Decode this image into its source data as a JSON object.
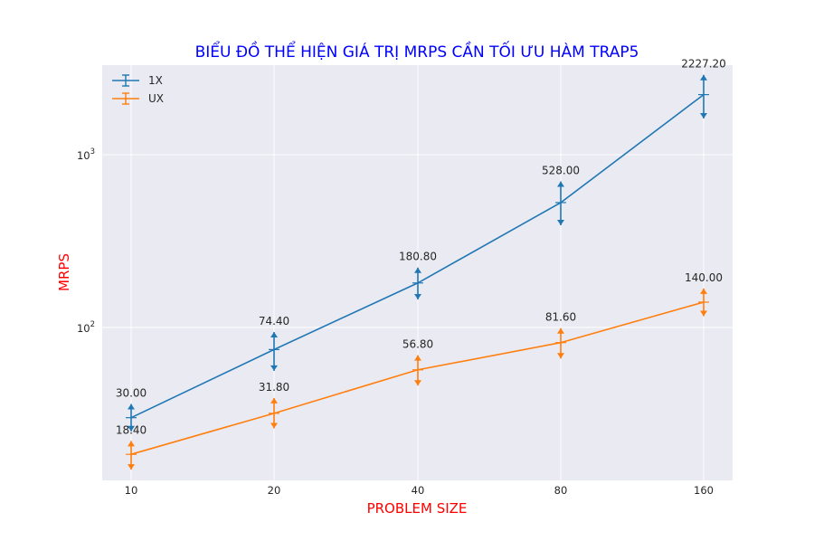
{
  "chart_data": {
    "type": "line",
    "title": "BIỂU ĐỒ THỂ HIỆN GIÁ TRỊ MRPS CẦN TỐI ƯU HÀM TRAP5",
    "xlabel": "PROBLEM SIZE",
    "ylabel": "MRPS",
    "categories": [
      "10",
      "20",
      "40",
      "80",
      "160"
    ],
    "y_scale": "log",
    "ylim": [
      13,
      3300
    ],
    "y_ticks": [
      {
        "value": 100,
        "base": "10",
        "exp": "2"
      },
      {
        "value": 1000,
        "base": "10",
        "exp": "3"
      }
    ],
    "grid": true,
    "legend_position": "top-left",
    "series": [
      {
        "name": "1X",
        "color": "#1f77b4",
        "values": [
          30.0,
          74.4,
          180.8,
          528.0,
          2227.2
        ],
        "labels": [
          "30.00",
          "74.40",
          "180.80",
          "528.00",
          "2227.20"
        ],
        "error_low": [
          25.0,
          56.0,
          145.0,
          390.0,
          1620.0
        ],
        "error_high": [
          36.0,
          94.0,
          222.0,
          700.0,
          2900.0
        ]
      },
      {
        "name": "UX",
        "color": "#ff7f0e",
        "values": [
          18.4,
          31.8,
          56.8,
          81.6,
          140.0
        ],
        "labels": [
          "18.40",
          "31.80",
          "56.80",
          "81.60",
          "140.00"
        ],
        "error_low": [
          15.0,
          26.0,
          46.0,
          66.0,
          116.0
        ],
        "error_high": [
          22.0,
          39.0,
          69.0,
          99.0,
          168.0
        ]
      }
    ]
  }
}
